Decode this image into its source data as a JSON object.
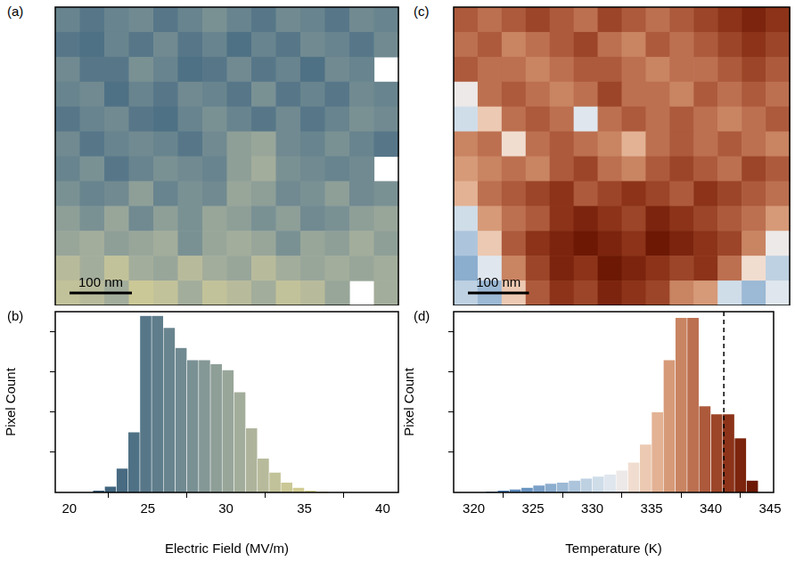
{
  "chart_data": [
    {
      "panel": "(a)",
      "type": "heatmap",
      "xlim": [
        0,
        550
      ],
      "ylim": [
        0,
        480
      ],
      "tick_labels": false,
      "scale_bar": {
        "value": 100,
        "label": "100 nm"
      },
      "cells": [
        [
          26,
          25,
          26,
          27,
          25,
          26,
          28,
          26,
          25,
          27,
          26,
          25,
          27,
          26
        ],
        [
          25,
          24,
          26,
          25,
          27,
          25,
          26,
          24,
          26,
          25,
          27,
          26,
          25,
          27
        ],
        [
          27,
          25,
          25,
          28,
          26,
          24,
          25,
          27,
          25,
          26,
          24,
          27,
          26,
          null
        ],
        [
          26,
          27,
          24,
          26,
          25,
          27,
          26,
          25,
          28,
          25,
          26,
          25,
          27,
          26
        ],
        [
          25,
          26,
          27,
          25,
          24,
          26,
          28,
          26,
          25,
          27,
          25,
          26,
          28,
          27
        ],
        [
          27,
          25,
          26,
          27,
          26,
          25,
          27,
          29,
          30,
          27,
          26,
          28,
          26,
          25
        ],
        [
          26,
          28,
          25,
          26,
          28,
          27,
          26,
          29,
          31,
          28,
          27,
          26,
          27,
          null
        ],
        [
          28,
          26,
          27,
          29,
          26,
          28,
          27,
          30,
          29,
          27,
          28,
          29,
          27,
          28
        ],
        [
          29,
          28,
          30,
          27,
          29,
          28,
          30,
          29,
          28,
          29,
          27,
          28,
          29,
          30
        ],
        [
          30,
          31,
          29,
          30,
          31,
          28,
          30,
          31,
          30,
          28,
          30,
          29,
          31,
          29
        ],
        [
          32,
          31,
          33,
          31,
          30,
          32,
          31,
          30,
          32,
          31,
          30,
          31,
          30,
          31
        ],
        [
          33,
          32,
          31,
          34,
          33,
          31,
          33,
          32,
          31,
          33,
          32,
          30,
          null,
          31
        ]
      ]
    },
    {
      "panel": "(b)",
      "type": "histogram",
      "x_label": "Electric Field (MV/m)",
      "y_label": "Pixel Count",
      "bins": [
        21.5,
        22.25,
        23,
        23.75,
        24.5,
        25.25,
        26,
        26.75,
        27.5,
        28.25,
        29,
        29.75,
        30.5,
        31.25,
        32,
        32.75,
        33.5,
        34.25,
        35,
        35.75,
        36.5
      ],
      "values": [
        0.05,
        0.15,
        0.6,
        1.5,
        4.4,
        4.4,
        4.1,
        3.6,
        3.3,
        3.3,
        3.2,
        3.05,
        2.5,
        1.6,
        0.85,
        0.5,
        0.25,
        0.12,
        0.05,
        0.02
      ],
      "colors": [
        "#3b5f7c",
        "#41657f",
        "#486b82",
        "#4f7185",
        "#577789",
        "#5f7d8b",
        "#68848e",
        "#718a91",
        "#7a9194",
        "#849896",
        "#8e9f98",
        "#98a69a",
        "#a3ad9b",
        "#adb49b",
        "#b8bb9b",
        "#c2c29a",
        "#cbc897",
        "#d2cd93",
        "#d7d290",
        "#dcd68c"
      ],
      "xlim": [
        19.1,
        41
      ],
      "xticks": [
        20,
        25,
        30,
        35,
        40
      ],
      "ylim": [
        0,
        4.5
      ],
      "yticks": [
        1,
        2,
        3,
        4
      ],
      "tick_labels": "x"
    },
    {
      "panel": "(c)",
      "type": "heatmap",
      "xlim": [
        0,
        550
      ],
      "ylim": [
        0,
        480
      ],
      "tick_labels": false,
      "scale_bar": {
        "value": 100,
        "label": "100 nm"
      },
      "cells": [
        [
          339,
          338,
          339,
          340,
          339,
          338,
          340,
          339,
          338,
          339,
          340,
          341,
          342,
          341
        ],
        [
          338,
          339,
          337,
          338,
          339,
          340,
          338,
          337,
          339,
          338,
          339,
          340,
          341,
          340
        ],
        [
          339,
          338,
          338,
          337,
          338,
          339,
          339,
          338,
          337,
          338,
          338,
          339,
          340,
          339
        ],
        [
          332,
          338,
          339,
          338,
          337,
          338,
          340,
          338,
          338,
          337,
          339,
          338,
          339,
          338
        ],
        [
          330,
          334,
          338,
          339,
          338,
          331,
          338,
          339,
          338,
          339,
          338,
          337,
          338,
          339
        ],
        [
          337,
          338,
          333,
          338,
          339,
          338,
          337,
          335,
          338,
          339,
          338,
          339,
          338,
          337
        ],
        [
          336,
          337,
          338,
          337,
          339,
          340,
          338,
          337,
          339,
          340,
          339,
          338,
          340,
          339
        ],
        [
          335,
          338,
          339,
          340,
          341,
          339,
          340,
          341,
          340,
          339,
          341,
          340,
          339,
          338
        ],
        [
          330,
          336,
          338,
          339,
          341,
          342,
          341,
          340,
          342,
          341,
          340,
          339,
          338,
          336
        ],
        [
          328,
          334,
          339,
          341,
          342,
          343,
          342,
          341,
          343,
          342,
          341,
          340,
          337,
          332
        ],
        [
          326,
          331,
          337,
          340,
          342,
          341,
          343,
          342,
          341,
          340,
          341,
          338,
          333,
          329
        ],
        [
          329,
          327,
          334,
          339,
          341,
          340,
          342,
          341,
          340,
          337,
          336,
          330,
          327,
          331
        ]
      ]
    },
    {
      "panel": "(d)",
      "type": "histogram",
      "x_label": "Temperature (K)",
      "y_label": "Pixel Count",
      "bins": [
        321,
        322,
        323,
        324,
        325,
        326,
        327,
        328,
        329,
        330,
        331,
        332,
        333,
        334,
        335,
        336,
        337,
        338,
        339,
        340,
        341,
        342,
        343,
        344
      ],
      "values": [
        0.02,
        0.05,
        0.08,
        0.12,
        0.18,
        0.22,
        0.25,
        0.3,
        0.35,
        0.4,
        0.45,
        0.55,
        0.75,
        1.2,
        2.0,
        3.3,
        4.35,
        4.35,
        2.15,
        1.95,
        1.95,
        1.35,
        0.3
      ],
      "colors": [
        "#3c6fa8",
        "#4a7db2",
        "#5a89ba",
        "#6a95c1",
        "#7ba1c8",
        "#8badce",
        "#9cb9d5",
        "#adc5dc",
        "#bed1e2",
        "#cfdde9",
        "#dfe6ee",
        "#ede9e8",
        "#f1ddd0",
        "#ecc9b2",
        "#e3b294",
        "#d69a78",
        "#c98462",
        "#bc7050",
        "#ad5a3c",
        "#9c4528",
        "#8c3319",
        "#7c240d",
        "#6c1805"
      ],
      "vertical_line": {
        "x": 341.1,
        "line_style": "dashed",
        "color": "#000000"
      },
      "xlim": [
        318.3,
        345.3
      ],
      "xticks": [
        320,
        325,
        330,
        335,
        340,
        345
      ],
      "ylim": [
        0,
        4.5
      ],
      "yticks": [
        1,
        2,
        3,
        4
      ],
      "tick_labels": "x"
    }
  ]
}
